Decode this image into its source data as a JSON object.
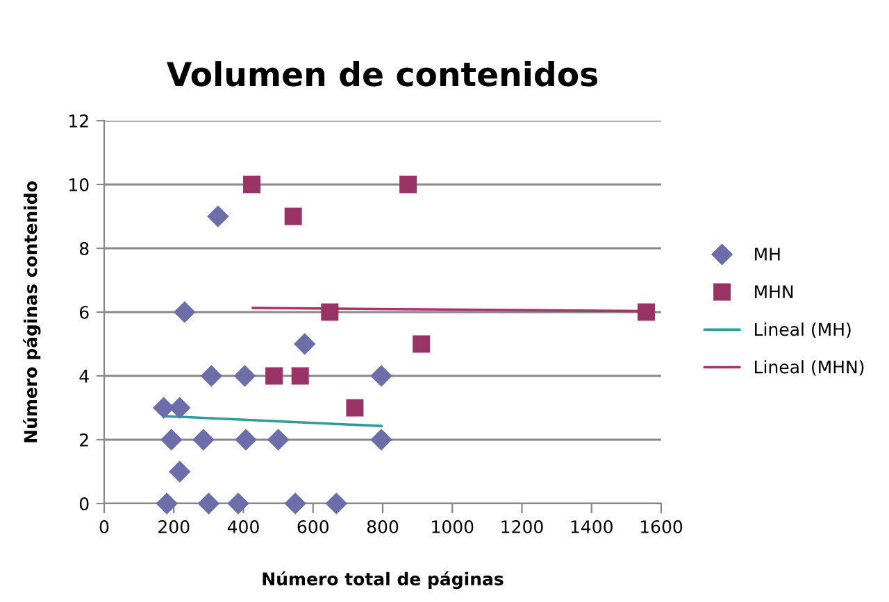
{
  "chart_data": {
    "type": "scatter",
    "title": "Volumen de contenidos",
    "xlabel": "Número total de páginas",
    "ylabel": "Número páginas contenido",
    "xlim": [
      0,
      1600
    ],
    "xticks": [
      0,
      200,
      400,
      600,
      800,
      1000,
      1200,
      1400,
      1600
    ],
    "ylim": [
      0,
      12
    ],
    "yticks": [
      0,
      2,
      4,
      6,
      8,
      10,
      12
    ],
    "grid": "y",
    "legend": "right",
    "series": [
      {
        "name": "MH",
        "color": "#6b6ea8",
        "marker": "diamond",
        "x": [
          327,
          231,
          576,
          308,
          404,
          796,
          171,
          217,
          193,
          285,
          407,
          500,
          796,
          217,
          180,
          300,
          385,
          549,
          667
        ],
        "values": [
          9,
          6,
          5,
          4,
          4,
          4,
          3,
          3,
          2,
          2,
          2,
          2,
          2,
          1,
          0,
          0,
          0,
          0,
          0
        ]
      },
      {
        "name": "MHN",
        "color": "#993366",
        "marker": "square",
        "x": [
          424,
          873,
          543,
          648,
          1557,
          911,
          488,
          563,
          720
        ],
        "values": [
          10,
          10,
          9,
          6,
          6,
          5,
          4,
          4,
          3
        ]
      },
      {
        "name": "Lineal (MH)",
        "type": "line",
        "color": "#2e9a9a",
        "line_style": "solid",
        "x": [
          171,
          796
        ],
        "values": [
          2.74,
          2.43
        ]
      },
      {
        "name": "Lineal (MHN)",
        "type": "line",
        "color": "#b0306b",
        "line_style": "solid",
        "x": [
          427,
          1557
        ],
        "values": [
          6.13,
          6.03
        ]
      }
    ]
  }
}
